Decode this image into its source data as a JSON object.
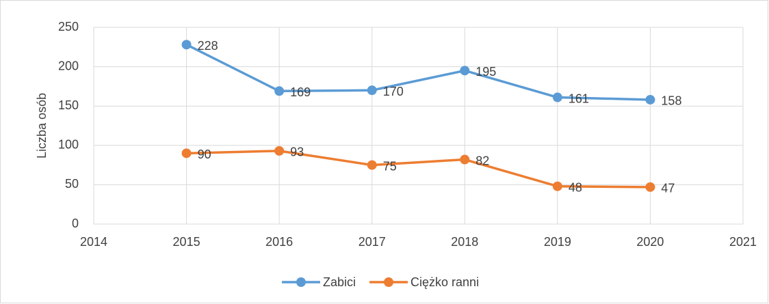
{
  "chart_data": {
    "type": "line",
    "ylabel": "Liczba osób",
    "x": [
      2015,
      2016,
      2017,
      2018,
      2019,
      2020
    ],
    "series": [
      {
        "name": "Zabici",
        "color": "#5b9bd5",
        "values": [
          228,
          169,
          170,
          195,
          161,
          158
        ]
      },
      {
        "name": "Ciężko ranni",
        "color": "#ed7d31",
        "values": [
          90,
          93,
          75,
          82,
          48,
          47
        ]
      }
    ],
    "xlim": [
      2014,
      2021
    ],
    "xticks": [
      2014,
      2015,
      2016,
      2017,
      2018,
      2019,
      2020,
      2021
    ],
    "ylim": [
      0,
      250
    ],
    "yticks": [
      0,
      50,
      100,
      150,
      200,
      250
    ],
    "grid": true,
    "legend": "bottom",
    "data_labels": true
  }
}
